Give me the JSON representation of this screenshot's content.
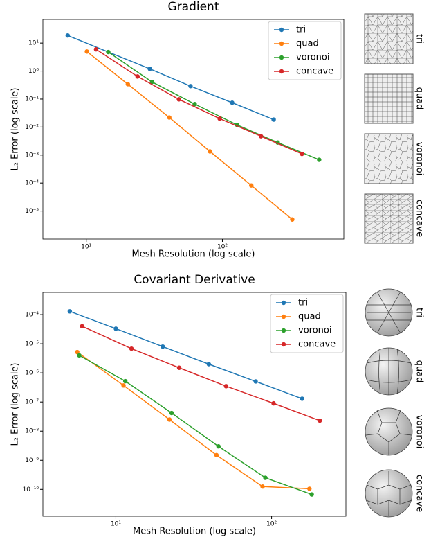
{
  "chart_data": [
    {
      "type": "line",
      "title": "Gradient",
      "x_label": "Mesh Resolution (log scale)",
      "y_label": "L₂ Error (log scale)",
      "xscale": "log",
      "yscale": "log",
      "xlim": [
        4.8,
        780
      ],
      "ylim": [
        1e-06,
        70
      ],
      "xticks": [
        {
          "value": 10,
          "label": "10¹"
        },
        {
          "value": 100,
          "label": "10²"
        }
      ],
      "yticks": [
        {
          "value": 10,
          "label": "10¹"
        },
        {
          "value": 1,
          "label": "10⁰"
        },
        {
          "value": 0.1,
          "label": "10⁻¹"
        },
        {
          "value": 0.01,
          "label": "10⁻²"
        },
        {
          "value": 0.001,
          "label": "10⁻³"
        },
        {
          "value": 0.0001,
          "label": "10⁻⁴"
        },
        {
          "value": 1e-05,
          "label": "10⁻⁵"
        }
      ],
      "legend": "upper right",
      "series": [
        {
          "name": "tri",
          "color": "#1f77b4",
          "x": [
            7.3,
            29.3,
            58.3,
            118,
            238
          ],
          "values": [
            18.7,
            1.2,
            0.29,
            0.074,
            0.0185
          ]
        },
        {
          "name": "quad",
          "color": "#ff7f0e",
          "x": [
            10.1,
            20.2,
            40.7,
            81,
            163,
            326
          ],
          "values": [
            5.0,
            0.34,
            0.022,
            0.00135,
            8.2e-05,
            5e-06
          ]
        },
        {
          "name": "voronoi",
          "color": "#2ca02c",
          "x": [
            14.5,
            30.4,
            62.6,
            128,
            255,
            514
          ],
          "values": [
            4.8,
            0.41,
            0.066,
            0.012,
            0.0028,
            0.00068
          ]
        },
        {
          "name": "concave",
          "color": "#d62728",
          "x": [
            11.8,
            23.8,
            47.9,
            95.5,
            192,
            384
          ],
          "values": [
            6.0,
            0.64,
            0.098,
            0.02,
            0.0047,
            0.0011
          ]
        }
      ]
    },
    {
      "type": "line",
      "title": "Covariant Derivative",
      "x_label": "Mesh Resolution (log scale)",
      "y_label": "L₂ Error (log scale)",
      "xscale": "log",
      "yscale": "log",
      "xlim": [
        3.4,
        300
      ],
      "ylim": [
        1.2e-11,
        0.00058
      ],
      "xticks": [
        {
          "value": 10,
          "label": "10¹"
        },
        {
          "value": 100,
          "label": "10²"
        }
      ],
      "yticks": [
        {
          "value": 0.0001,
          "label": "10⁻⁴"
        },
        {
          "value": 1e-05,
          "label": "10⁻⁵"
        },
        {
          "value": 1e-06,
          "label": "10⁻⁶"
        },
        {
          "value": 1e-07,
          "label": "10⁻⁷"
        },
        {
          "value": 1e-08,
          "label": "10⁻⁸"
        },
        {
          "value": 1e-09,
          "label": "10⁻⁹"
        },
        {
          "value": 1e-10,
          "label": "10⁻¹⁰"
        }
      ],
      "legend": "upper right",
      "series": [
        {
          "name": "tri",
          "color": "#1f77b4",
          "x": [
            5.06,
            10,
            20,
            39.5,
            79,
            157
          ],
          "values": [
            0.00013,
            3.3e-05,
            8e-06,
            2e-06,
            5.1e-07,
            1.3e-07
          ]
        },
        {
          "name": "quad",
          "color": "#ff7f0e",
          "x": [
            5.65,
            11.2,
            22.1,
            44.3,
            87.5,
            175
          ],
          "values": [
            5.2e-06,
            3.7e-07,
            2.5e-08,
            1.5e-09,
            1.25e-10,
            1.05e-10
          ]
        },
        {
          "name": "voronoi",
          "color": "#2ca02c",
          "x": [
            5.82,
            11.5,
            22.8,
            45.6,
            91.2,
            181
          ],
          "values": [
            4e-06,
            5.2e-07,
            4.2e-08,
            3e-09,
            2.5e-10,
            6.7e-11
          ]
        },
        {
          "name": "concave",
          "color": "#d62728",
          "x": [
            6.07,
            12.6,
            25.5,
            51,
            103,
            204
          ],
          "values": [
            4e-05,
            6.8e-06,
            1.5e-06,
            3.5e-07,
            9e-08,
            2.3e-08
          ]
        }
      ]
    }
  ]
}
